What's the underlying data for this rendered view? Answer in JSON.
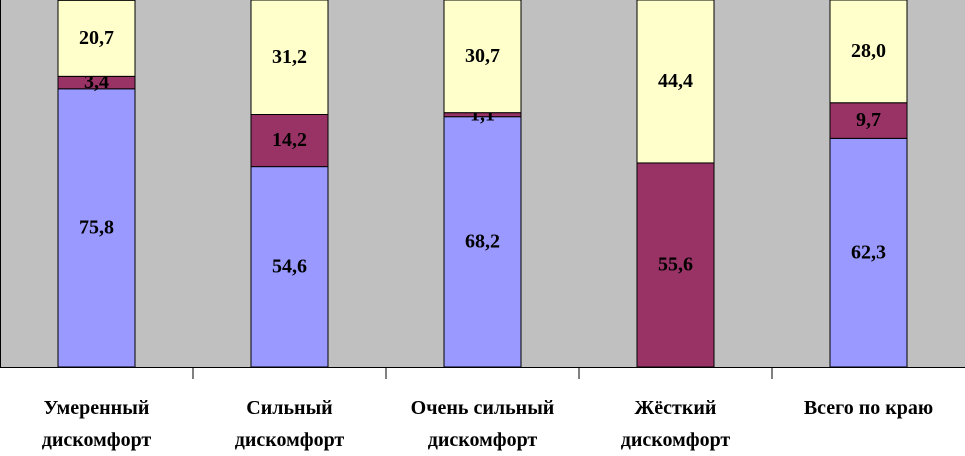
{
  "chart_data": {
    "type": "stacked-bar",
    "categories": [
      "Умеренный дискомфорт",
      "Сильный дискомфорт",
      "Очень сильный дискомфорт",
      "Жёсткий дискомфорт",
      "Всего по краю"
    ],
    "series": [
      {
        "color": "#9999ff",
        "values": [
          75.8,
          54.6,
          68.2,
          null,
          62.3
        ],
        "value_labels": [
          "75,8",
          "54,6",
          "68,2",
          null,
          "62,3"
        ]
      },
      {
        "color": "#993366",
        "values": [
          3.4,
          14.2,
          1.1,
          55.6,
          9.7
        ],
        "value_labels": [
          "3,4",
          "14,2",
          "1,1",
          "55,6",
          "9,7"
        ]
      },
      {
        "color": "#ffffcc",
        "values": [
          20.7,
          31.2,
          30.7,
          44.4,
          28.0
        ],
        "value_labels": [
          "20,7",
          "31,2",
          "30,7",
          "44,4",
          "28,0"
        ]
      }
    ],
    "ylim": [
      0,
      100
    ],
    "plot_background": "#c0c0c0"
  }
}
